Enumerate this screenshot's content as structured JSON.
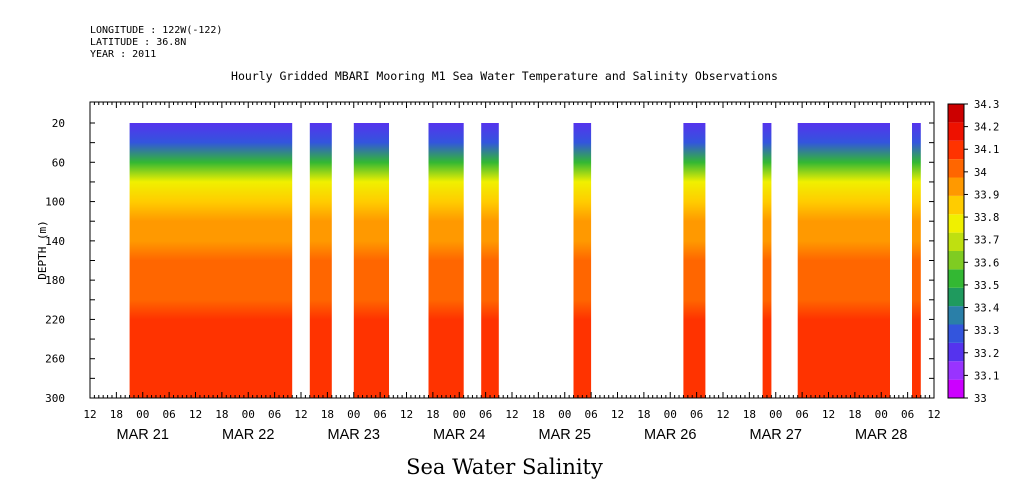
{
  "header": {
    "longitude": "LONGITUDE : 122W(-122)",
    "latitude": "LATITUDE : 36.8N",
    "year": "YEAR : 2011"
  },
  "chart_data": {
    "type": "heatmap",
    "title": "Hourly Gridded MBARI Mooring M1 Sea Water Temperature and Salinity Observations",
    "bottom_title": "Sea Water Salinity",
    "ylabel": "DEPTH (m)",
    "ylim": [
      300,
      20
    ],
    "y_inverted": true,
    "y_ticks": [
      20,
      60,
      100,
      140,
      180,
      220,
      260,
      300
    ],
    "x_time_range": [
      "2011-03-20T12:00",
      "2011-03-28T12:00"
    ],
    "x_tick_labels": [
      "12",
      "18",
      "00",
      "06",
      "12",
      "18",
      "00",
      "06",
      "12",
      "18",
      "00",
      "06",
      "12",
      "18",
      "00",
      "06",
      "12",
      "18",
      "00",
      "06",
      "12",
      "18",
      "00",
      "06",
      "12",
      "18",
      "00",
      "06",
      "12",
      "18",
      "00",
      "06",
      "12"
    ],
    "date_labels": [
      "MAR 21",
      "MAR 22",
      "MAR 23",
      "MAR 24",
      "MAR 25",
      "MAR 26",
      "MAR 27",
      "MAR 28"
    ],
    "colorbar": {
      "levels": [
        33.0,
        33.1,
        33.2,
        33.3,
        33.4,
        33.5,
        33.6,
        33.7,
        33.8,
        33.9,
        34.0,
        34.1,
        34.2,
        34.3
      ],
      "labels": [
        "33",
        "33.1",
        "33.2",
        "33.3",
        "33.4",
        "33.5",
        "33.6",
        "33.7",
        "33.8",
        "33.9",
        "34",
        "34.1",
        "34.2",
        "34.3"
      ],
      "colors": [
        "#cc00ff",
        "#9933ff",
        "#5533ee",
        "#3355dd",
        "#2a7fa8",
        "#1f9a5e",
        "#33b833",
        "#7fcc22",
        "#bfe010",
        "#f0f000",
        "#ffcc00",
        "#ff9900",
        "#ff6600",
        "#ff3300",
        "#ee1100",
        "#cc0000"
      ]
    },
    "observation_blocks": [
      {
        "start": "2011-03-20T21:00",
        "end": "2011-03-22T10:00"
      },
      {
        "start": "2011-03-22T14:00",
        "end": "2011-03-22T19:00"
      },
      {
        "start": "2011-03-23T00:00",
        "end": "2011-03-23T08:00"
      },
      {
        "start": "2011-03-23T17:00",
        "end": "2011-03-24T01:00"
      },
      {
        "start": "2011-03-24T05:00",
        "end": "2011-03-24T09:00"
      },
      {
        "start": "2011-03-25T02:00",
        "end": "2011-03-25T06:00"
      },
      {
        "start": "2011-03-26T03:00",
        "end": "2011-03-26T08:00"
      },
      {
        "start": "2011-03-26T21:00",
        "end": "2011-03-26T23:00"
      },
      {
        "start": "2011-03-27T05:00",
        "end": "2011-03-28T02:00"
      },
      {
        "start": "2011-03-28T07:00",
        "end": "2011-03-28T09:00"
      }
    ],
    "depth_profile": [
      {
        "depth": 20,
        "value": 33.15
      },
      {
        "depth": 40,
        "value": 33.25
      },
      {
        "depth": 60,
        "value": 33.55
      },
      {
        "depth": 80,
        "value": 33.85
      },
      {
        "depth": 100,
        "value": 33.95
      },
      {
        "depth": 120,
        "value": 34.0
      },
      {
        "depth": 140,
        "value": 34.05
      },
      {
        "depth": 160,
        "value": 34.1
      },
      {
        "depth": 180,
        "value": 34.12
      },
      {
        "depth": 200,
        "value": 34.15
      },
      {
        "depth": 220,
        "value": 34.2
      },
      {
        "depth": 240,
        "value": 34.25
      },
      {
        "depth": 260,
        "value": 34.28
      },
      {
        "depth": 280,
        "value": 34.22
      },
      {
        "depth": 300,
        "value": 34.2
      }
    ]
  }
}
